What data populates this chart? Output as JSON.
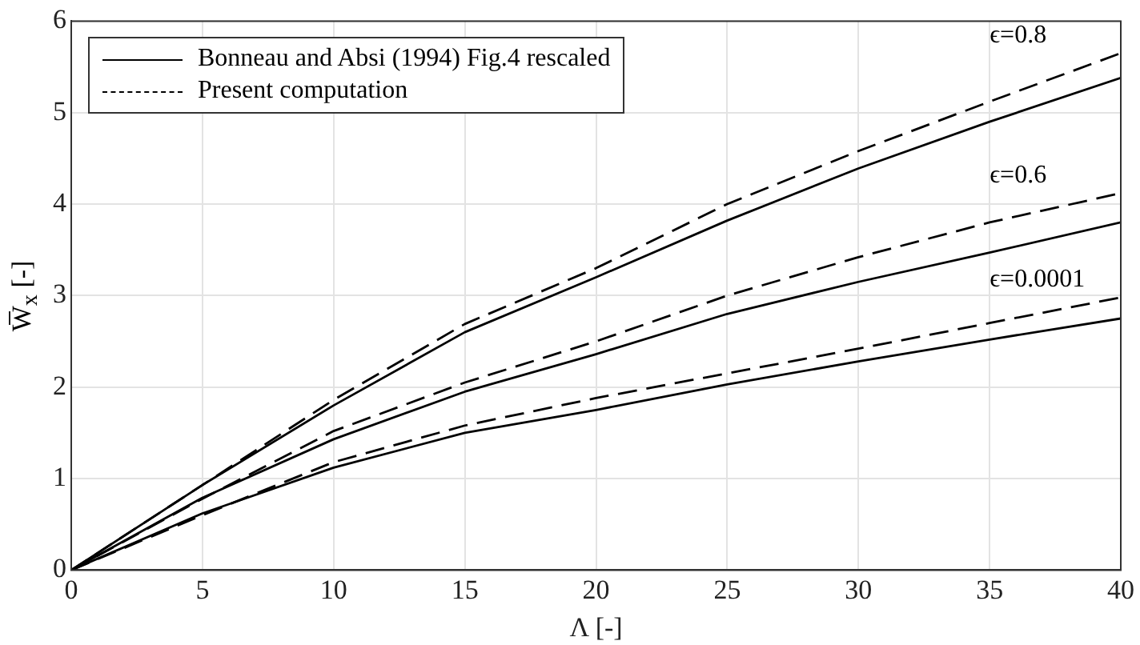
{
  "chart_data": {
    "type": "line",
    "xlabel": "Λ [-]",
    "ylabel": "W̅$_{x}$ [-]",
    "xlim": [
      0,
      40
    ],
    "xticks": [
      0,
      5,
      10,
      15,
      20,
      25,
      30,
      35,
      40
    ],
    "ylim": [
      0,
      6
    ],
    "yticks": [
      0,
      1,
      2,
      3,
      4,
      5,
      6
    ],
    "grid": true,
    "legend": "top left",
    "marker": "none",
    "series": [
      {
        "name": "Bonneau and Absi (1994) Fig.4 rescaled",
        "color": "#000000",
        "line_style": "solid",
        "x": [
          0,
          5,
          10,
          15,
          20,
          25,
          30,
          35,
          40
        ],
        "values": [
          0,
          0.93,
          1.8,
          2.6,
          3.2,
          3.82,
          4.39,
          4.9,
          5.38
        ]
      },
      {
        "name": "Present computation",
        "color": "#000000",
        "line_style": "dashed",
        "x": [
          0,
          5,
          10,
          15,
          20,
          25,
          30,
          35,
          40
        ],
        "values": [
          0,
          0.93,
          1.86,
          2.69,
          3.3,
          4.0,
          4.58,
          5.12,
          5.65
        ]
      },
      {
        "color": "#000000",
        "line_style": "solid",
        "x": [
          0,
          5,
          10,
          15,
          20,
          25,
          30,
          35,
          40
        ],
        "values": [
          0,
          0.79,
          1.43,
          1.95,
          2.36,
          2.8,
          3.15,
          3.47,
          3.8
        ]
      },
      {
        "color": "#000000",
        "line_style": "dashed",
        "x": [
          0,
          5,
          10,
          15,
          20,
          25,
          30,
          35,
          40
        ],
        "values": [
          0,
          0.78,
          1.52,
          2.05,
          2.5,
          3.0,
          3.42,
          3.8,
          4.12
        ]
      },
      {
        "color": "#000000",
        "line_style": "solid",
        "x": [
          0,
          5,
          10,
          15,
          20,
          25,
          30,
          35,
          40
        ],
        "values": [
          0,
          0.62,
          1.12,
          1.5,
          1.75,
          2.03,
          2.28,
          2.52,
          2.75
        ]
      },
      {
        "color": "#000000",
        "line_style": "dashed",
        "x": [
          0,
          5,
          10,
          15,
          20,
          25,
          30,
          35,
          40
        ],
        "values": [
          0,
          0.6,
          1.18,
          1.58,
          1.88,
          2.15,
          2.42,
          2.7,
          2.98
        ]
      }
    ],
    "annotations": [
      "ϵ=0.8",
      "ϵ=0.6",
      "ϵ=0.0001"
    ]
  }
}
